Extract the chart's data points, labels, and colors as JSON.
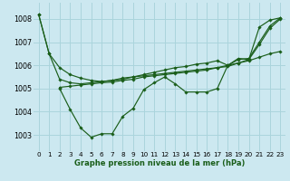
{
  "background_color": "#cce8f0",
  "grid_color": "#aad4dc",
  "line_color": "#1a5e1a",
  "xlabel": "Graphe pression niveau de la mer (hPa)",
  "xlim": [
    -0.5,
    23.5
  ],
  "ylim": [
    1002.3,
    1008.7
  ],
  "yticks": [
    1003,
    1004,
    1005,
    1006,
    1007,
    1008
  ],
  "xticks": [
    0,
    1,
    2,
    3,
    4,
    5,
    6,
    7,
    8,
    9,
    10,
    11,
    12,
    13,
    14,
    15,
    16,
    17,
    18,
    19,
    20,
    21,
    22,
    23
  ],
  "series": [
    {
      "x": [
        0,
        1,
        2,
        3,
        4,
        5,
        6,
        7,
        8,
        9,
        10,
        11,
        12,
        13,
        14,
        15,
        16,
        17,
        18,
        19,
        20,
        21,
        22,
        23
      ],
      "y": [
        1008.2,
        1006.5,
        1005.9,
        1005.6,
        1005.45,
        1005.35,
        1005.3,
        1005.35,
        1005.45,
        1005.5,
        1005.55,
        1005.6,
        1005.65,
        1005.7,
        1005.75,
        1005.8,
        1005.85,
        1005.9,
        1005.95,
        1006.1,
        1006.25,
        1006.9,
        1007.6,
        1008.0
      ]
    },
    {
      "x": [
        2,
        3,
        4,
        5,
        6,
        7,
        8,
        9,
        10,
        11,
        12,
        13,
        14,
        15,
        16,
        17,
        18,
        19,
        20,
        21,
        22,
        23
      ],
      "y": [
        1005.0,
        1004.1,
        1003.3,
        1002.9,
        1003.05,
        1003.05,
        1003.8,
        1004.15,
        1004.95,
        1005.25,
        1005.5,
        1005.2,
        1004.85,
        1004.85,
        1004.85,
        1005.0,
        1006.0,
        1006.3,
        1006.25,
        1007.65,
        1007.95,
        1008.05
      ]
    },
    {
      "x": [
        0,
        1,
        2,
        3,
        4,
        5,
        6,
        7,
        8,
        9,
        10,
        11,
        12,
        13,
        14,
        15,
        16,
        17,
        18,
        19,
        20,
        21,
        22,
        23
      ],
      "y": [
        1008.2,
        1006.5,
        1005.4,
        1005.25,
        1005.2,
        1005.25,
        1005.3,
        1005.35,
        1005.4,
        1005.5,
        1005.6,
        1005.7,
        1005.8,
        1005.9,
        1005.95,
        1006.05,
        1006.1,
        1006.2,
        1006.0,
        1006.25,
        1006.3,
        1007.0,
        1007.7,
        1008.05
      ]
    },
    {
      "x": [
        2,
        3,
        4,
        5,
        6,
        7,
        8,
        9,
        10,
        11,
        12,
        13,
        14,
        15,
        16,
        17,
        18,
        19,
        20,
        21,
        22,
        23
      ],
      "y": [
        1005.05,
        1005.1,
        1005.15,
        1005.2,
        1005.25,
        1005.28,
        1005.35,
        1005.4,
        1005.5,
        1005.55,
        1005.6,
        1005.65,
        1005.7,
        1005.75,
        1005.8,
        1005.9,
        1006.0,
        1006.1,
        1006.2,
        1006.35,
        1006.5,
        1006.6
      ]
    }
  ]
}
